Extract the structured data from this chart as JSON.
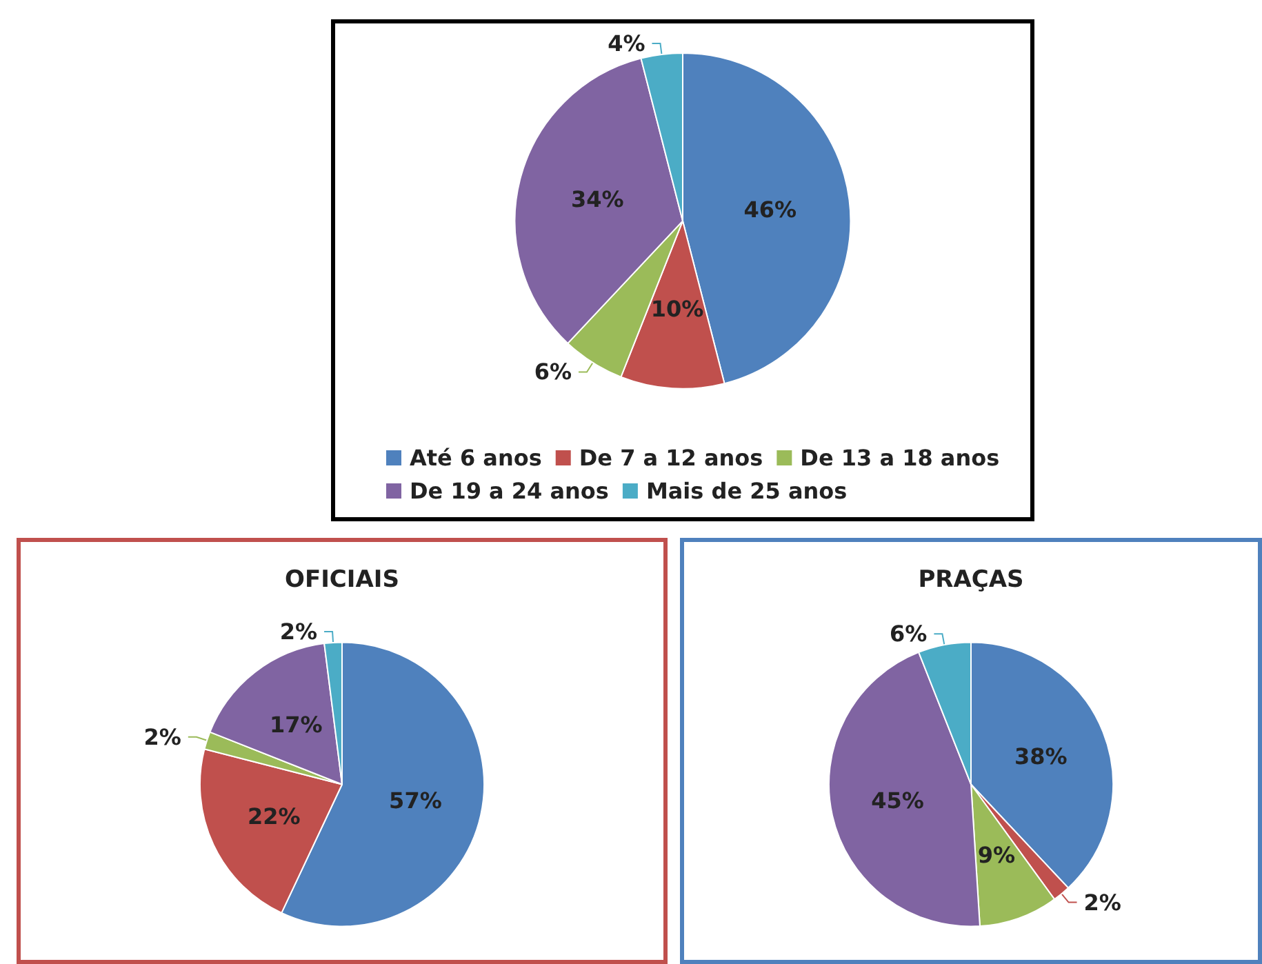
{
  "chart_data": [
    {
      "type": "pie",
      "categories": [
        "Até 6 anos",
        "De 7 a 12 anos",
        "De 13 a 18 anos",
        "De 19 a 24 anos",
        "Mais de 25 anos"
      ],
      "values": [
        46,
        10,
        6,
        34,
        4
      ],
      "value_labels": [
        "46%",
        "10%",
        "6%",
        "34%",
        "4%"
      ],
      "colors": [
        "#4f81bd",
        "#c0504d",
        "#9bbb59",
        "#8064a2",
        "#4bacc6"
      ],
      "legend": "bottom"
    },
    {
      "type": "pie",
      "title": "OFICIAIS",
      "categories": [
        null,
        null,
        null,
        null,
        null
      ],
      "values": [
        57,
        22,
        2,
        17,
        2
      ],
      "value_labels": [
        "57%",
        "22%",
        "2%",
        "17%",
        "2%"
      ],
      "colors": [
        "#4f81bd",
        "#c0504d",
        "#9bbb59",
        "#8064a2",
        "#4bacc6"
      ]
    },
    {
      "type": "pie",
      "title": "PRAÇAS",
      "categories": [
        null,
        null,
        null,
        null,
        null
      ],
      "values": [
        38,
        2,
        9,
        45,
        6
      ],
      "value_labels": [
        "38%",
        "2%",
        "9%",
        "45%",
        "6%"
      ],
      "colors": [
        "#4f81bd",
        "#c0504d",
        "#9bbb59",
        "#8064a2",
        "#4bacc6"
      ]
    }
  ]
}
